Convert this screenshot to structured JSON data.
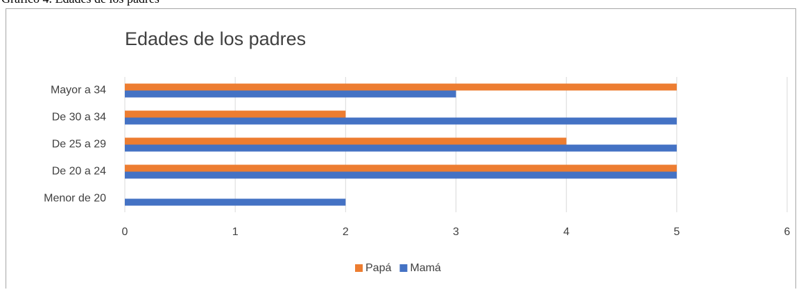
{
  "caption": "Gráfico 4. Edades de los padres",
  "chart_data": {
    "type": "hbar",
    "title": "Edades de los padres",
    "categories": [
      "Menor de 20",
      "De 20 a 24",
      "De 25 a 29",
      "De 30 a 34",
      "Mayor a 34"
    ],
    "series": [
      {
        "name": "Papá",
        "color": "#ed7d31",
        "values": [
          0,
          5,
          4,
          2,
          5
        ]
      },
      {
        "name": "Mamá",
        "color": "#4472c4",
        "values": [
          2,
          5,
          5,
          5,
          3
        ]
      }
    ],
    "xlim": [
      0,
      6
    ],
    "xticks": [
      0,
      1,
      2,
      3,
      4,
      5,
      6
    ],
    "grid": true,
    "legend": "bottom"
  }
}
